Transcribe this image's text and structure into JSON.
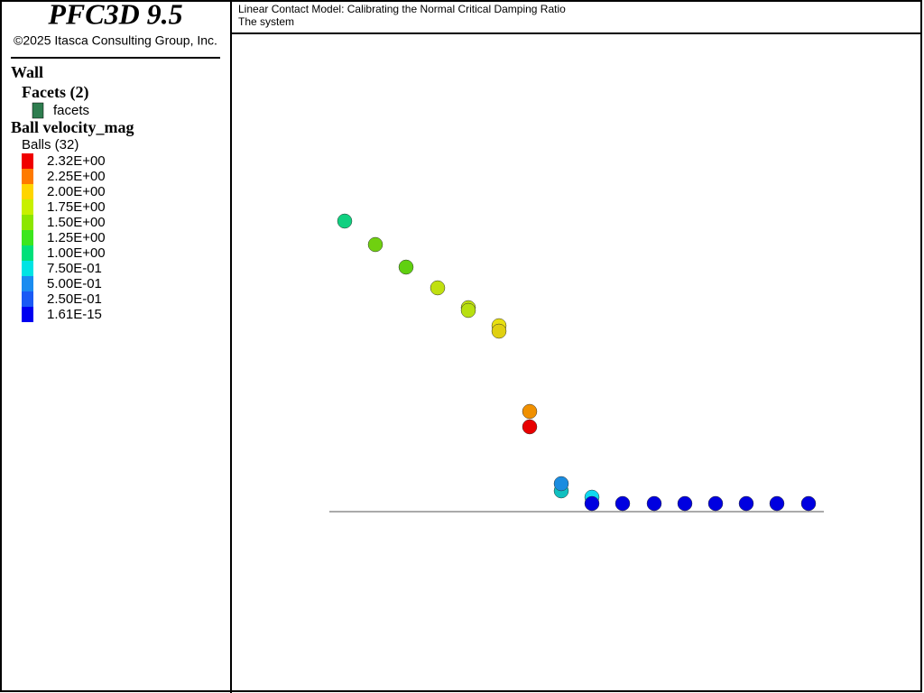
{
  "header": {
    "title": "PFC3D 9.5",
    "copyright": "©2025 Itasca Consulting Group, Inc."
  },
  "legend": {
    "wall_title": "Wall",
    "facets_title": "Facets (2)",
    "facets_item": {
      "label": "facets",
      "color": "#2e7d4f"
    },
    "velocity_title": "Ball velocity_mag",
    "balls_title": "Balls (32)",
    "entries": [
      {
        "label": "2.32E+00",
        "color": "#f00000"
      },
      {
        "label": "2.25E+00",
        "color": "#ff7a00"
      },
      {
        "label": "2.00E+00",
        "color": "#ffd500"
      },
      {
        "label": "1.75E+00",
        "color": "#c8f000"
      },
      {
        "label": "1.50E+00",
        "color": "#8ce600"
      },
      {
        "label": "1.25E+00",
        "color": "#3ce61e"
      },
      {
        "label": "1.00E+00",
        "color": "#00e07a"
      },
      {
        "label": "7.50E-01",
        "color": "#00e4e4"
      },
      {
        "label": "5.00E-01",
        "color": "#1a8cf0"
      },
      {
        "label": "2.50E-01",
        "color": "#1a5af5"
      },
      {
        "label": "1.61E-15",
        "color": "#0000f0"
      }
    ]
  },
  "plot": {
    "title": "Linear Contact Model: Calibrating the Normal Critical Damping Ratio",
    "subtitle": "The system"
  }
}
